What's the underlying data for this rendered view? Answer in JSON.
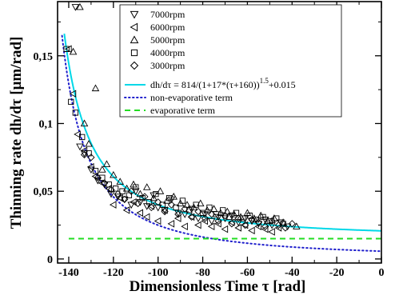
{
  "chart_data": {
    "type": "scatter",
    "title": "",
    "xlabel": "Dimensionless Time τ [rad]",
    "ylabel": "Thinning rate dh/dτ [μm/rad]",
    "xlim": [
      -145,
      0
    ],
    "ylim": [
      -0.003,
      0.19
    ],
    "x_ticks": [
      -140,
      -120,
      -100,
      -80,
      -60,
      -40,
      -20,
      0
    ],
    "x_tick_labels": [
      "-140",
      "-120",
      "-100",
      "-80",
      "-60",
      "-40",
      "-20",
      "0"
    ],
    "y_ticks": [
      0,
      0.05,
      0.1,
      0.15
    ],
    "y_tick_labels": [
      "0",
      "0,05",
      "0,1",
      "0,15"
    ],
    "legend_position": "top-right",
    "series": [
      {
        "name": "7000rpm",
        "marker": "triangle-down",
        "x": [
          -137,
          -135,
          -133,
          -130,
          -127,
          -124,
          -121,
          -118,
          -115,
          -112,
          -110,
          -108,
          -105,
          -102,
          -100,
          -97,
          -94,
          -91,
          -88,
          -85,
          -82,
          -79,
          -76,
          -73,
          -70,
          -67,
          -64,
          -61,
          -58,
          -55,
          -52,
          -49,
          -45,
          -42
        ],
        "y": [
          0.186,
          0.083,
          0.078,
          0.066,
          0.058,
          0.055,
          0.048,
          0.046,
          0.044,
          0.04,
          0.05,
          0.042,
          0.039,
          0.047,
          0.038,
          0.036,
          0.044,
          0.034,
          0.033,
          0.037,
          0.03,
          0.033,
          0.028,
          0.031,
          0.03,
          0.032,
          0.027,
          0.03,
          0.028,
          0.026,
          0.029,
          0.025,
          0.027,
          0.024
        ]
      },
      {
        "name": "6000rpm",
        "marker": "triangle-left",
        "x": [
          -140,
          -138,
          -136,
          -133,
          -130,
          -128,
          -125,
          -122,
          -120,
          -117,
          -114,
          -111,
          -108,
          -105,
          -103,
          -100,
          -97,
          -94,
          -91,
          -88,
          -85,
          -82,
          -79,
          -76,
          -73,
          -70,
          -67,
          -64,
          -61,
          -58,
          -55,
          -52,
          -49,
          -46
        ],
        "y": [
          0.155,
          0.122,
          0.092,
          0.08,
          0.068,
          0.061,
          0.056,
          0.052,
          0.04,
          0.045,
          0.036,
          0.042,
          0.034,
          0.031,
          0.039,
          0.028,
          0.036,
          0.026,
          0.03,
          0.024,
          0.031,
          0.025,
          0.028,
          0.024,
          0.026,
          0.022,
          0.027,
          0.023,
          0.025,
          0.021,
          0.024,
          0.022,
          0.02,
          0.023
        ]
      },
      {
        "name": "5000rpm",
        "marker": "triangle-up",
        "x": [
          -138,
          -135,
          -133,
          -131,
          -128,
          -125,
          -123,
          -120,
          -117,
          -114,
          -111,
          -108,
          -105,
          -102,
          -99,
          -96,
          -93,
          -90,
          -87,
          -84,
          -81,
          -78,
          -75,
          -72,
          -69,
          -66,
          -63,
          -60,
          -57,
          -54,
          -51,
          -48,
          -44,
          -38
        ],
        "y": [
          0.153,
          0.186,
          0.1,
          0.085,
          0.126,
          0.066,
          0.07,
          0.062,
          0.057,
          0.052,
          0.055,
          0.048,
          0.053,
          0.045,
          0.05,
          0.043,
          0.046,
          0.041,
          0.04,
          0.038,
          0.041,
          0.036,
          0.037,
          0.034,
          0.035,
          0.033,
          0.031,
          0.034,
          0.03,
          0.032,
          0.028,
          0.03,
          0.027,
          0.024
        ]
      },
      {
        "name": "4000rpm",
        "marker": "square",
        "x": [
          -141,
          -139,
          -137,
          -134,
          -131,
          -128,
          -125,
          -122,
          -119,
          -116,
          -113,
          -110,
          -107,
          -104,
          -101,
          -98,
          -95,
          -92,
          -89,
          -86,
          -83,
          -80,
          -77,
          -74,
          -71,
          -68,
          -65,
          -62,
          -59,
          -56,
          -53,
          -50,
          -47,
          -44
        ],
        "y": [
          0.155,
          0.116,
          0.108,
          0.09,
          0.078,
          0.065,
          0.06,
          0.055,
          0.052,
          0.05,
          0.047,
          0.053,
          0.045,
          0.042,
          0.048,
          0.04,
          0.045,
          0.038,
          0.043,
          0.036,
          0.04,
          0.034,
          0.038,
          0.033,
          0.036,
          0.031,
          0.034,
          0.03,
          0.032,
          0.029,
          0.031,
          0.028,
          0.03,
          0.026
        ]
      },
      {
        "name": "3000rpm",
        "marker": "diamond",
        "x": [
          -133,
          -130,
          -127,
          -124,
          -121,
          -118,
          -115,
          -112,
          -109,
          -106,
          -103,
          -100,
          -97,
          -94,
          -91,
          -88,
          -85,
          -82,
          -79,
          -76,
          -73,
          -70,
          -67,
          -64,
          -61,
          -58,
          -55,
          -52,
          -49,
          -46,
          -43,
          -40
        ],
        "y": [
          0.077,
          0.075,
          0.06,
          0.056,
          0.051,
          0.048,
          0.044,
          0.05,
          0.041,
          0.046,
          0.038,
          0.042,
          0.035,
          0.04,
          0.033,
          0.037,
          0.031,
          0.035,
          0.03,
          0.033,
          0.028,
          0.032,
          0.026,
          0.03,
          0.025,
          0.029,
          0.027,
          0.024,
          0.028,
          0.025,
          0.023,
          0.026
        ]
      }
    ],
    "curves": [
      {
        "name": "dh/dτ = 814/(1+17*(τ+160))^1.5+0.015",
        "style": "solid",
        "color": "#00d8e8",
        "formula": "814/(1+17*(t+160))^1.5+0.015",
        "x_range": [
          -142,
          0
        ]
      },
      {
        "name": "non-evaporative term",
        "style": "dotted",
        "color": "#1f1fcc",
        "formula": "814/(1+17*(t+160))^1.5",
        "x_range": [
          -143,
          0
        ]
      },
      {
        "name": "evaporative term",
        "style": "dashed",
        "color": "#22dd22",
        "formula": "0.015",
        "x_range": [
          -140,
          0
        ]
      }
    ]
  },
  "legend_text": {
    "s7000": "7000rpm",
    "s6000": "6000rpm",
    "s5000": "5000rpm",
    "s4000": "4000rpm",
    "s3000": "3000rpm",
    "fit_main": "dh/dτ = 814/(1+17*(τ+160))",
    "fit_exp": "1.5",
    "fit_tail": "+0.015",
    "nonevap": "non-evaporative term",
    "evap": "evaporative term"
  }
}
